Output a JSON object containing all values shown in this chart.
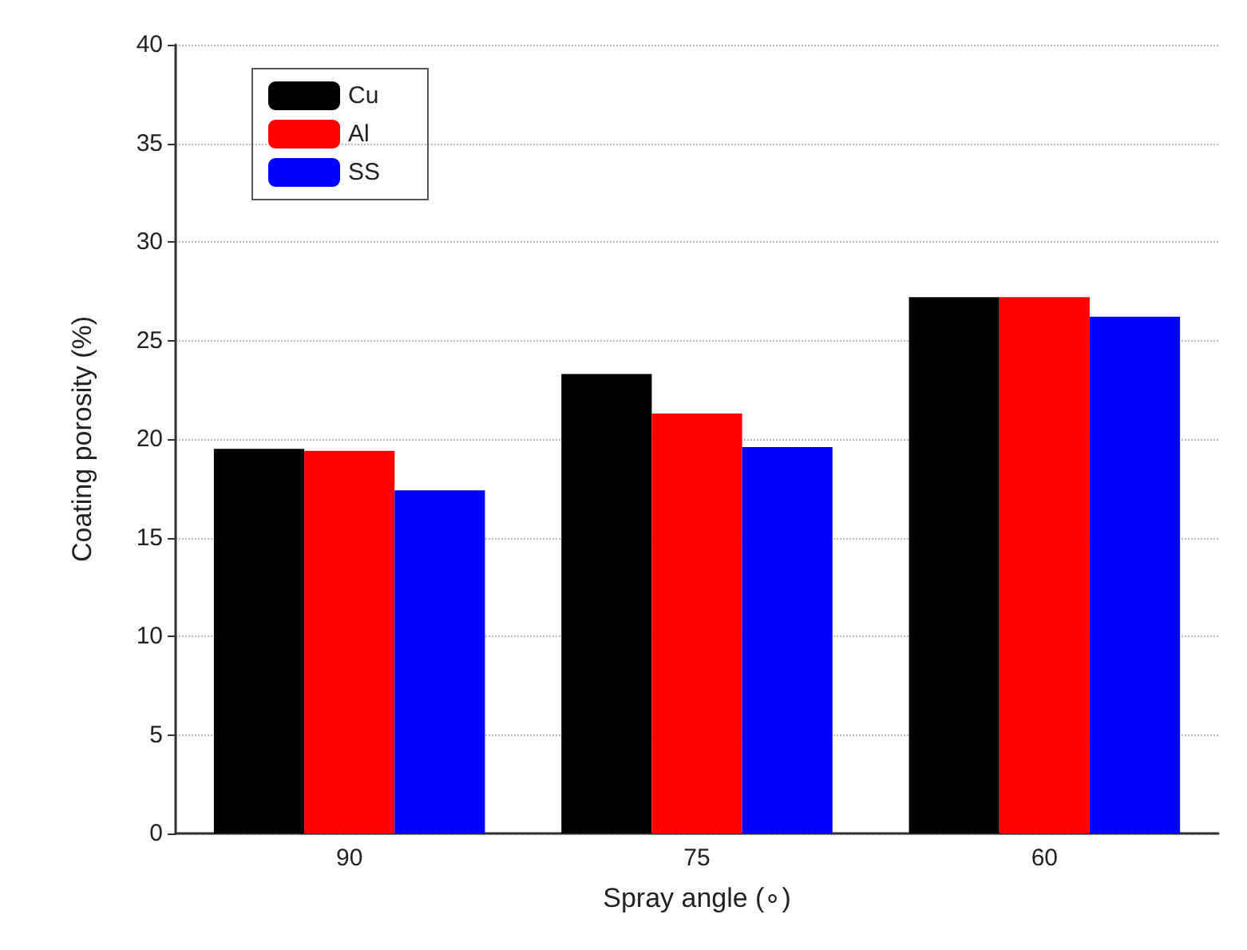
{
  "chart_data": {
    "type": "bar",
    "xlabel": "Spray angle (∘)",
    "ylabel": "Coating porosity (%)",
    "categories": [
      "90",
      "75",
      "60"
    ],
    "series": [
      {
        "name": "Cu",
        "color": "#000000",
        "values": [
          19.5,
          23.3,
          27.2
        ]
      },
      {
        "name": "Al",
        "color": "#ff0000",
        "values": [
          19.4,
          21.3,
          27.2
        ]
      },
      {
        "name": "SS",
        "color": "#0000ff",
        "values": [
          17.4,
          19.6,
          26.2
        ]
      }
    ],
    "ylim": [
      0,
      40
    ],
    "yticks": [
      0,
      5,
      10,
      15,
      20,
      25,
      30,
      35,
      40
    ],
    "grid": "y",
    "legend": "top left"
  }
}
